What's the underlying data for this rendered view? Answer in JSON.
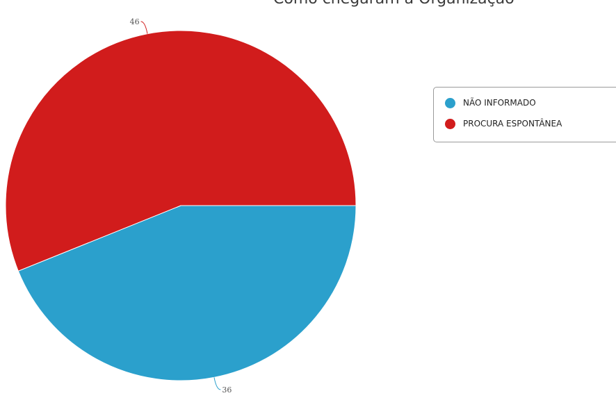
{
  "chart_data": {
    "type": "pie",
    "title": "Como chegaram à Organização",
    "series": [
      {
        "name": "NÃO INFORMADO",
        "value": 36,
        "color": "#2ba0cc"
      },
      {
        "name": "PROCURA ESPONTÂNEA",
        "value": 46,
        "color": "#d11c1c"
      }
    ],
    "legend_position": "top-right"
  }
}
